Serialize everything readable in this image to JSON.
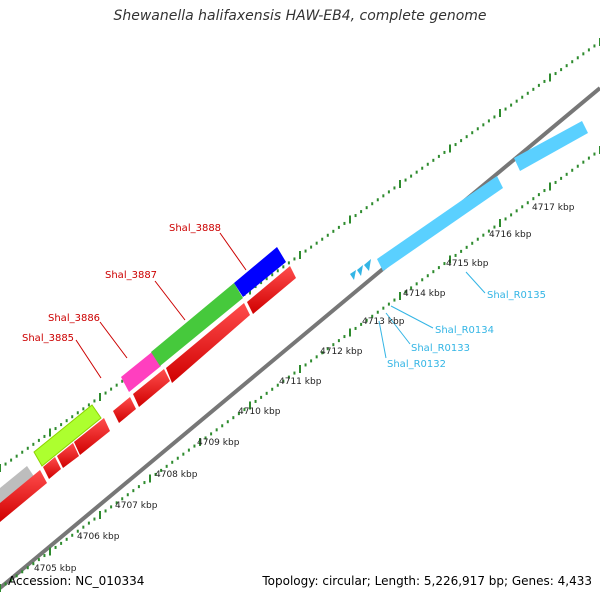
{
  "title": "Shewanella halifaxensis HAW-EB4, complete genome",
  "footer": {
    "accession": "Accession: NC_010334",
    "summary": "Topology: circular; Length: 5,226,917 bp; Genes: 4,433"
  },
  "colors": {
    "backbone": "#8c8c8c",
    "tick": "#2e8b2e",
    "label_red": "#cc0000",
    "label_cyan": "#33b5e5"
  },
  "axis_labels": [
    "4705 kbp",
    "4706 kbp",
    "4707 kbp",
    "4708 kbp",
    "4709 kbp",
    "4710 kbp",
    "4711 kbp",
    "4712 kbp",
    "4713 kbp",
    "4714 kbp",
    "4715 kbp",
    "4716 kbp",
    "4717 kbp"
  ],
  "gene_labels": {
    "red": [
      "Shal_3885",
      "Shal_3886",
      "Shal_3887",
      "Shal_3888"
    ],
    "cyan": [
      "Shal_R0132",
      "Shal_R0133",
      "Shal_R0134",
      "Shal_R0135"
    ]
  }
}
